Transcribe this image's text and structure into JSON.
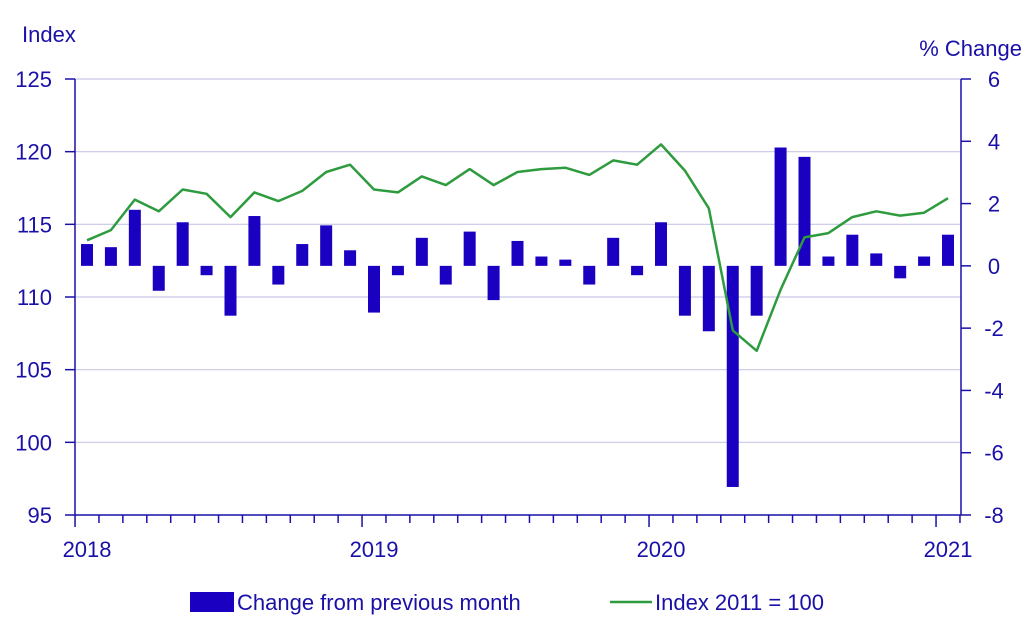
{
  "chart_data": {
    "type": "bar+line",
    "left_axis_label": "Index",
    "right_axis_label": "% Change",
    "left_ylim": [
      95,
      125
    ],
    "left_ticks": [
      "95",
      "100",
      "105",
      "110",
      "115",
      "120",
      "125"
    ],
    "right_ylim": [
      -8,
      6
    ],
    "right_ticks": [
      "-8",
      "-6",
      "-4",
      "-2",
      "0",
      "2",
      "4",
      "6"
    ],
    "x_tick_labels": [
      "2018",
      "2019",
      "2020",
      "2021"
    ],
    "months": [
      "2018-01",
      "2018-02",
      "2018-03",
      "2018-04",
      "2018-05",
      "2018-06",
      "2018-07",
      "2018-08",
      "2018-09",
      "2018-10",
      "2018-11",
      "2018-12",
      "2019-01",
      "2019-02",
      "2019-03",
      "2019-04",
      "2019-05",
      "2019-06",
      "2019-07",
      "2019-08",
      "2019-09",
      "2019-10",
      "2019-11",
      "2019-12",
      "2020-01",
      "2020-02",
      "2020-03",
      "2020-04",
      "2020-05",
      "2020-06",
      "2020-07",
      "2020-08",
      "2020-09",
      "2020-10",
      "2020-11",
      "2020-12",
      "2021-01"
    ],
    "series": [
      {
        "name": "Change from previous month",
        "kind": "bar",
        "axis": "right",
        "color": "#1a00c0",
        "values": [
          0.7,
          0.6,
          1.8,
          -0.8,
          1.4,
          -0.3,
          -1.6,
          1.6,
          -0.6,
          0.7,
          1.3,
          0.5,
          -1.5,
          -0.3,
          0.9,
          -0.6,
          1.1,
          -1.1,
          0.8,
          0.3,
          0.2,
          -0.6,
          0.9,
          -0.3,
          1.4,
          -1.6,
          -2.1,
          -7.1,
          -1.6,
          3.8,
          3.5,
          0.3,
          1.0,
          0.4,
          -0.4,
          0.3,
          1.0
        ]
      },
      {
        "name": "Index 2011 = 100",
        "kind": "line",
        "axis": "left",
        "color": "#2e9b3e",
        "values": [
          113.9,
          114.6,
          116.7,
          115.9,
          117.4,
          117.1,
          115.5,
          117.2,
          116.6,
          117.3,
          118.6,
          119.1,
          117.4,
          117.2,
          118.3,
          117.7,
          118.8,
          117.7,
          118.6,
          118.8,
          118.9,
          118.4,
          119.4,
          119.1,
          120.5,
          118.7,
          116.1,
          107.7,
          106.3,
          110.5,
          114.1,
          114.4,
          115.5,
          115.9,
          115.6,
          115.8,
          116.8
        ]
      }
    ],
    "grid": true,
    "legend_position": "bottom"
  },
  "colors": {
    "text": "#1a10a8",
    "axis": "#1a10a8",
    "grid": "#c9c6e6",
    "bar": "#1a00c0",
    "line": "#2e9b3e"
  }
}
